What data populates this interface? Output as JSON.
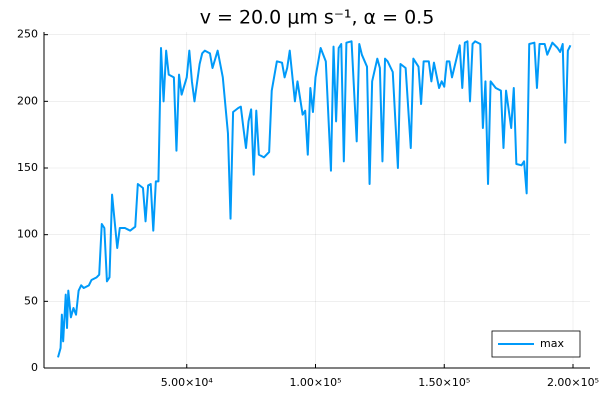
{
  "chart_data": {
    "type": "line",
    "title": "v = 20.0 μm s⁻¹, α = 0.5",
    "x": [
      0,
      1000,
      1500,
      2000,
      3000,
      3500,
      4000,
      5000,
      6000,
      7000,
      8000,
      9000,
      10000,
      12000,
      13000,
      15000,
      16000,
      17000,
      18000,
      19000,
      20000,
      21000,
      22000,
      23000,
      24000,
      26000,
      28000,
      30000,
      31000,
      33000,
      34000,
      35000,
      36000,
      37000,
      38000,
      39000,
      40000,
      41000,
      42000,
      43000,
      45000,
      46000,
      47000,
      48000,
      50000,
      51000,
      52000,
      53000,
      55000,
      56000,
      57000,
      59000,
      60000,
      62000,
      64000,
      66000,
      67000,
      68000,
      70000,
      71000,
      72000,
      73000,
      74000,
      75000,
      76000,
      77000,
      78000,
      80000,
      82000,
      83000,
      85000,
      87000,
      88000,
      89000,
      90000,
      92000,
      93000,
      95000,
      96000,
      97000,
      98000,
      99000,
      100000,
      102000,
      104000,
      106000,
      107000,
      108000,
      109000,
      110000,
      111000,
      112000,
      114000,
      116000,
      117000,
      118000,
      120000,
      121000,
      122000,
      124000,
      125000,
      126000,
      127000,
      128000,
      130000,
      132000,
      133000,
      135000,
      137000,
      138000,
      140000,
      141000,
      142000,
      144000,
      145000,
      146000,
      148000,
      149000,
      150000,
      151000,
      152000,
      153000,
      154000,
      156000,
      157000,
      158000,
      159000,
      160000,
      161000,
      162000,
      164000,
      165000,
      166000,
      167000,
      168000,
      170000,
      172000,
      173000,
      174000,
      176000,
      177000,
      178000,
      180000,
      181000,
      182000,
      183000,
      185000,
      186000,
      187000,
      189000,
      190000,
      192000,
      194000,
      195000,
      196000,
      197000,
      198000,
      199000
    ],
    "series": [
      {
        "name": "max",
        "color": "#009af9",
        "values": [
          8,
          15,
          40,
          20,
          55,
          30,
          58,
          38,
          45,
          40,
          58,
          62,
          60,
          62,
          66,
          68,
          70,
          108,
          105,
          65,
          68,
          130,
          110,
          90,
          105,
          105,
          103,
          106,
          138,
          135,
          110,
          137,
          138,
          103,
          140,
          140,
          240,
          200,
          238,
          220,
          218,
          163,
          220,
          205,
          218,
          238,
          215,
          200,
          228,
          236,
          238,
          236,
          225,
          238,
          218,
          176,
          112,
          192,
          195,
          196,
          180,
          165,
          185,
          194,
          145,
          193,
          160,
          158,
          162,
          208,
          230,
          229,
          218,
          225,
          238,
          200,
          215,
          190,
          193,
          160,
          210,
          192,
          218,
          240,
          230,
          148,
          241,
          185,
          240,
          243,
          155,
          244,
          245,
          170,
          243,
          235,
          226,
          138,
          215,
          232,
          225,
          155,
          232,
          230,
          222,
          150,
          228,
          225,
          165,
          232,
          226,
          198,
          230,
          230,
          215,
          229,
          210,
          215,
          211,
          230,
          230,
          218,
          226,
          242,
          210,
          244,
          245,
          200,
          243,
          245,
          243,
          180,
          215,
          138,
          215,
          210,
          208,
          165,
          208,
          180,
          210,
          153,
          152,
          155,
          131,
          243,
          244,
          210,
          243,
          243,
          235,
          244,
          240,
          237,
          243,
          169,
          238,
          242
        ]
      }
    ],
    "xlim": [
      -5437,
      206600
    ],
    "ylim": [
      0,
      252
    ],
    "xticks": [
      {
        "value": 50000,
        "label": "5.00×10⁴"
      },
      {
        "value": 100000,
        "label": "1.00×10⁵"
      },
      {
        "value": 150000,
        "label": "1.50×10⁵"
      },
      {
        "value": 200000,
        "label": "2.00×10⁵"
      }
    ],
    "yticks": [
      0,
      50,
      100,
      150,
      200,
      250
    ],
    "grid": true,
    "legend": "bottom-right"
  }
}
